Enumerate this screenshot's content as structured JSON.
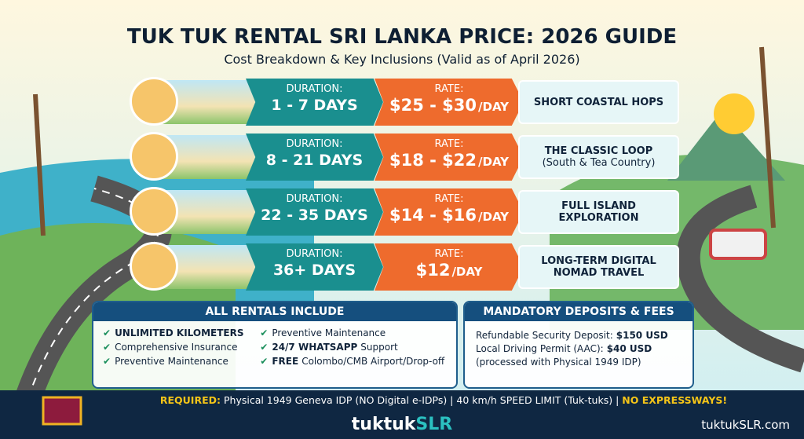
{
  "header": {
    "title": "TUK TUK RENTAL SRI LANKA PRICE: 2026 GUIDE",
    "subtitle": "Cost Breakdown & Key Inclusions (Valid as of April 2026)"
  },
  "rows": [
    {
      "duration_label": "DURATION:",
      "duration": "1 - 7 DAYS",
      "rate_label": "RATE:",
      "rate": "$25 - $30",
      "unit": "/DAY",
      "description": "SHORT COASTAL HOPS"
    },
    {
      "duration_label": "DURATION:",
      "duration": "8 - 21 DAYS",
      "rate_label": "RATE:",
      "rate": "$18 - $22",
      "unit": "/DAY",
      "description": "THE CLASSIC LOOP",
      "note": "(South & Tea Country)"
    },
    {
      "duration_label": "DURATION:",
      "duration": "22 - 35 DAYS",
      "rate_label": "RATE:",
      "rate": "$14 - $16",
      "unit": "/DAY",
      "description": "FULL ISLAND EXPLORATION"
    },
    {
      "duration_label": "DURATION:",
      "duration": "36+ DAYS",
      "rate_label": "RATE:",
      "rate": "$12",
      "unit": "/DAY",
      "description": "LONG-TERM DIGITAL NOMAD TRAVEL"
    }
  ],
  "includes": {
    "title": "ALL RENTALS INCLUDE",
    "items": [
      {
        "strong": "UNLIMITED KILOMETERS"
      },
      {
        "text": "Comprehensive Insurance"
      },
      {
        "text": "Preventive Maintenance"
      },
      {
        "text": "Preventive Maintenance"
      },
      {
        "strong": "24/7 WHATSAPP",
        "text": "Support"
      },
      {
        "strong": "FREE",
        "text": "Colombo/CMB Airport/Drop-off"
      }
    ]
  },
  "deposits": {
    "title": "MANDATORY DEPOSITS & FEES",
    "lines": [
      {
        "text": "Refundable Security Deposit:",
        "strong": "$150 USD"
      },
      {
        "text": "Local Driving Permit (AAC):",
        "strong": "$40 USD"
      },
      {
        "text": "(processed with Physical 1949 IDP)"
      }
    ]
  },
  "banner": {
    "label": "REQUIRED:",
    "text": "Physical 1949 Geneva IDP (NO Digital e-IDPs) | 40 km/h SPEED LIMIT (Tuk-tuks) |",
    "alert": "NO EXPRESSWAYS!"
  },
  "footer": {
    "brand_main": "tuktuk",
    "brand_accent": "SLR",
    "url": "tuktukSLR.com"
  }
}
